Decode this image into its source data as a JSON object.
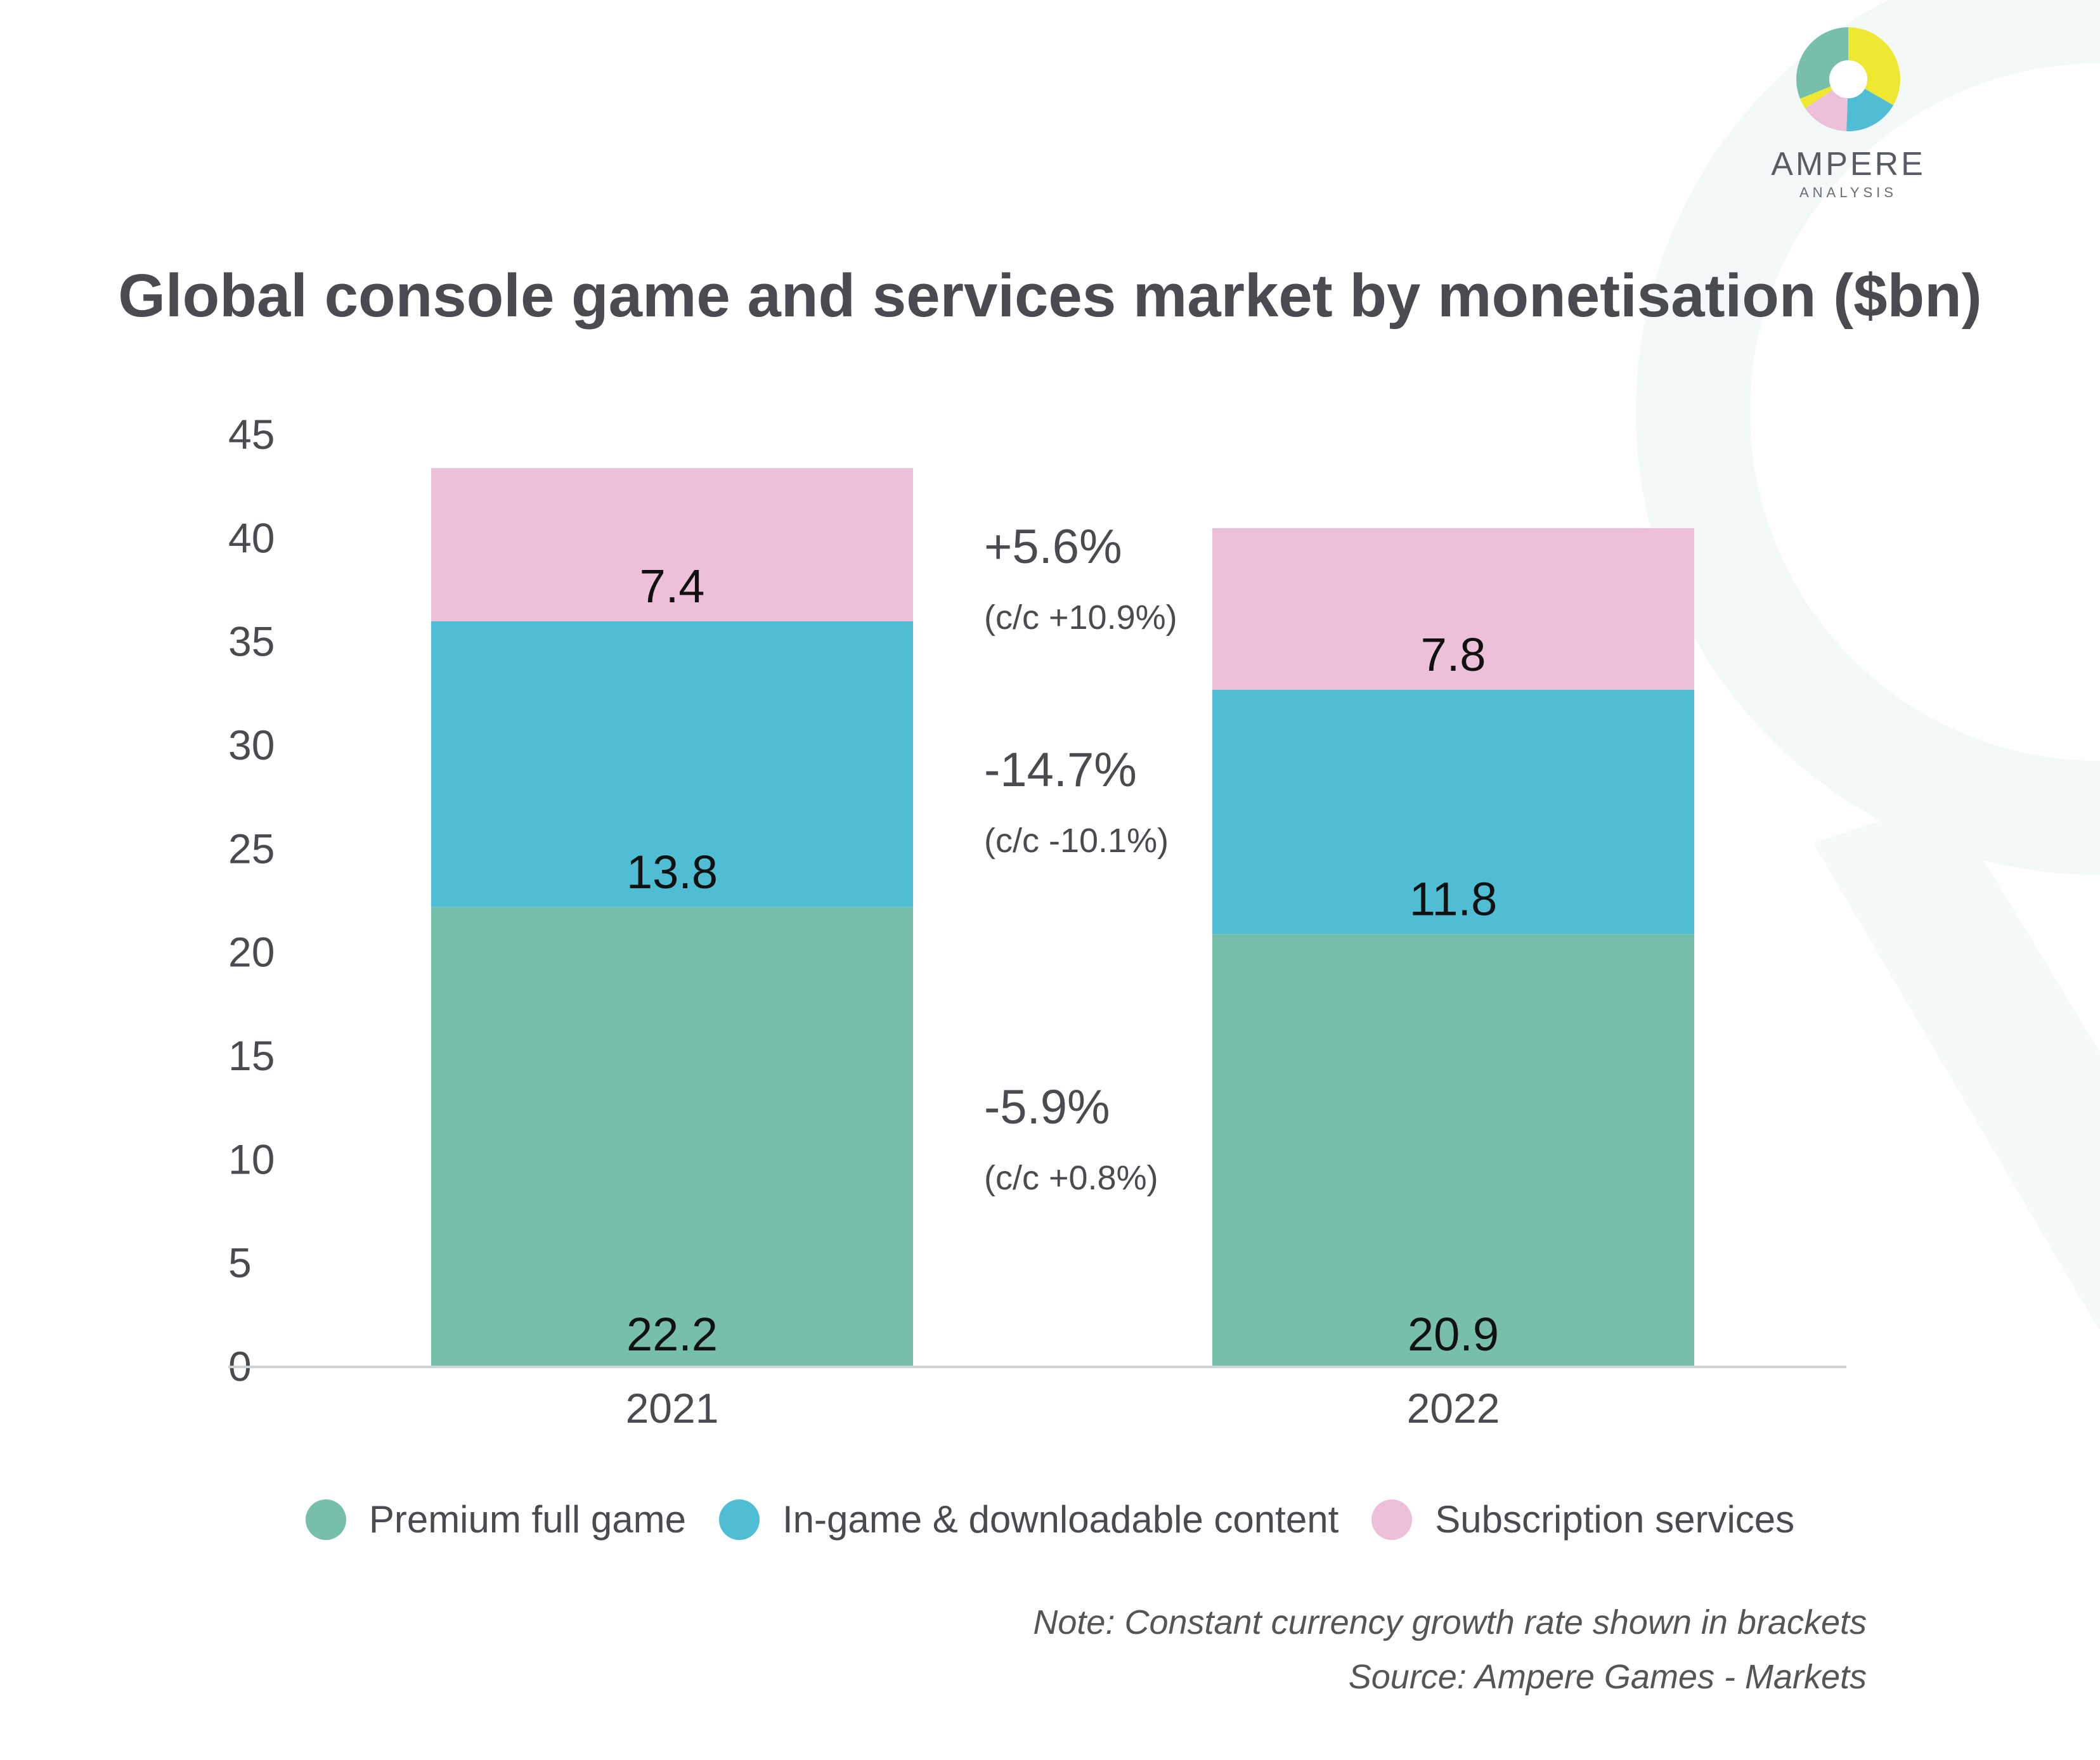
{
  "logo": {
    "name": "AMPERE",
    "subtitle": "ANALYSIS"
  },
  "colors": {
    "premium": "#78bfab",
    "ingame": "#4fbdd3",
    "subscription": "#edc0da",
    "text": "#4a4b50",
    "label": "#111111",
    "axis_line": "#cfd2d5",
    "logo_yellow": "#eee830"
  },
  "chart_data": {
    "type": "bar",
    "stacked": true,
    "title": "Global console game and services market by monetisation ($bn)",
    "categories": [
      "2021",
      "2022"
    ],
    "series": [
      {
        "name": "Premium full game",
        "values": [
          22.2,
          20.9
        ]
      },
      {
        "name": "In-game & downloadable content",
        "values": [
          13.8,
          11.8
        ]
      },
      {
        "name": "Subscription services",
        "values": [
          7.4,
          7.8
        ]
      }
    ],
    "y_ticks": [
      "0",
      "5",
      "10",
      "15",
      "20",
      "25",
      "30",
      "35",
      "40",
      "45"
    ],
    "ylim": [
      0,
      45
    ],
    "xlabel": "",
    "ylabel": "",
    "grid": false,
    "legend_position": "bottom",
    "value_labels": [
      [
        "22.2",
        "13.8",
        "7.4"
      ],
      [
        "20.9",
        "11.8",
        "7.8"
      ]
    ],
    "annotations": [
      {
        "series": "Subscription services",
        "change": "+5.6%",
        "constant_currency": "(c/c +10.9%)"
      },
      {
        "series": "In-game & downloadable content",
        "change": "-14.7%",
        "constant_currency": "(c/c -10.1%)"
      },
      {
        "series": "Premium full game",
        "change": "-5.9%",
        "constant_currency": "(c/c +0.8%)"
      }
    ]
  },
  "note": "Note: Constant currency growth rate shown in brackets",
  "source": "Source: Ampere Games - Markets"
}
